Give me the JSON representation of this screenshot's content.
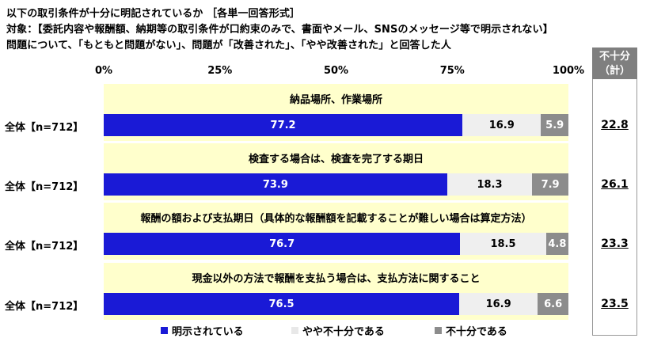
{
  "header": {
    "line1": "以下の取引条件が十分に明記されているか ［各単一回答形式］",
    "line2": "対象：【委託内容や報酬額、納期等の取引条件が口約束のみで、書面やメール、SNSのメッセージ等で明示されない】",
    "line3": "問題について、「もともと問題がない」、問題が「改善された」、「やや改善された」と回答した人"
  },
  "side": {
    "title1": "不十分",
    "title2": "（計）"
  },
  "colors": {
    "clear": "#1a1ad6",
    "somewhat": "#efefef",
    "insufficient": "#8c8c8c",
    "band": "#ffffcc"
  },
  "chart_data": {
    "type": "bar",
    "stacked": true,
    "orientation": "horizontal",
    "xlim": [
      0,
      100
    ],
    "ticks": [
      "0%",
      "25%",
      "50%",
      "75%",
      "100%"
    ],
    "series_names": [
      "明示されている",
      "やや不十分である",
      "不十分である"
    ],
    "rows": [
      {
        "category": "納品場所、作業場所",
        "label": "全体【n=712】",
        "values": [
          77.2,
          16.9,
          5.9
        ],
        "insufficient_total": "22.8"
      },
      {
        "category": "検査する場合は、検査を完了する期日",
        "label": "全体【n=712】",
        "values": [
          73.9,
          18.3,
          7.9
        ],
        "insufficient_total": "26.1"
      },
      {
        "category": "報酬の額および支払期日（具体的な報酬額を記載することが難しい場合は算定方法）",
        "label": "全体【n=712】",
        "values": [
          76.7,
          18.5,
          4.8
        ],
        "insufficient_total": "23.3"
      },
      {
        "category": "現金以外の方法で報酬を支払う場合は、支払方法に関すること",
        "label": "全体【n=712】",
        "values": [
          76.5,
          16.9,
          6.6
        ],
        "insufficient_total": "23.5"
      }
    ]
  }
}
